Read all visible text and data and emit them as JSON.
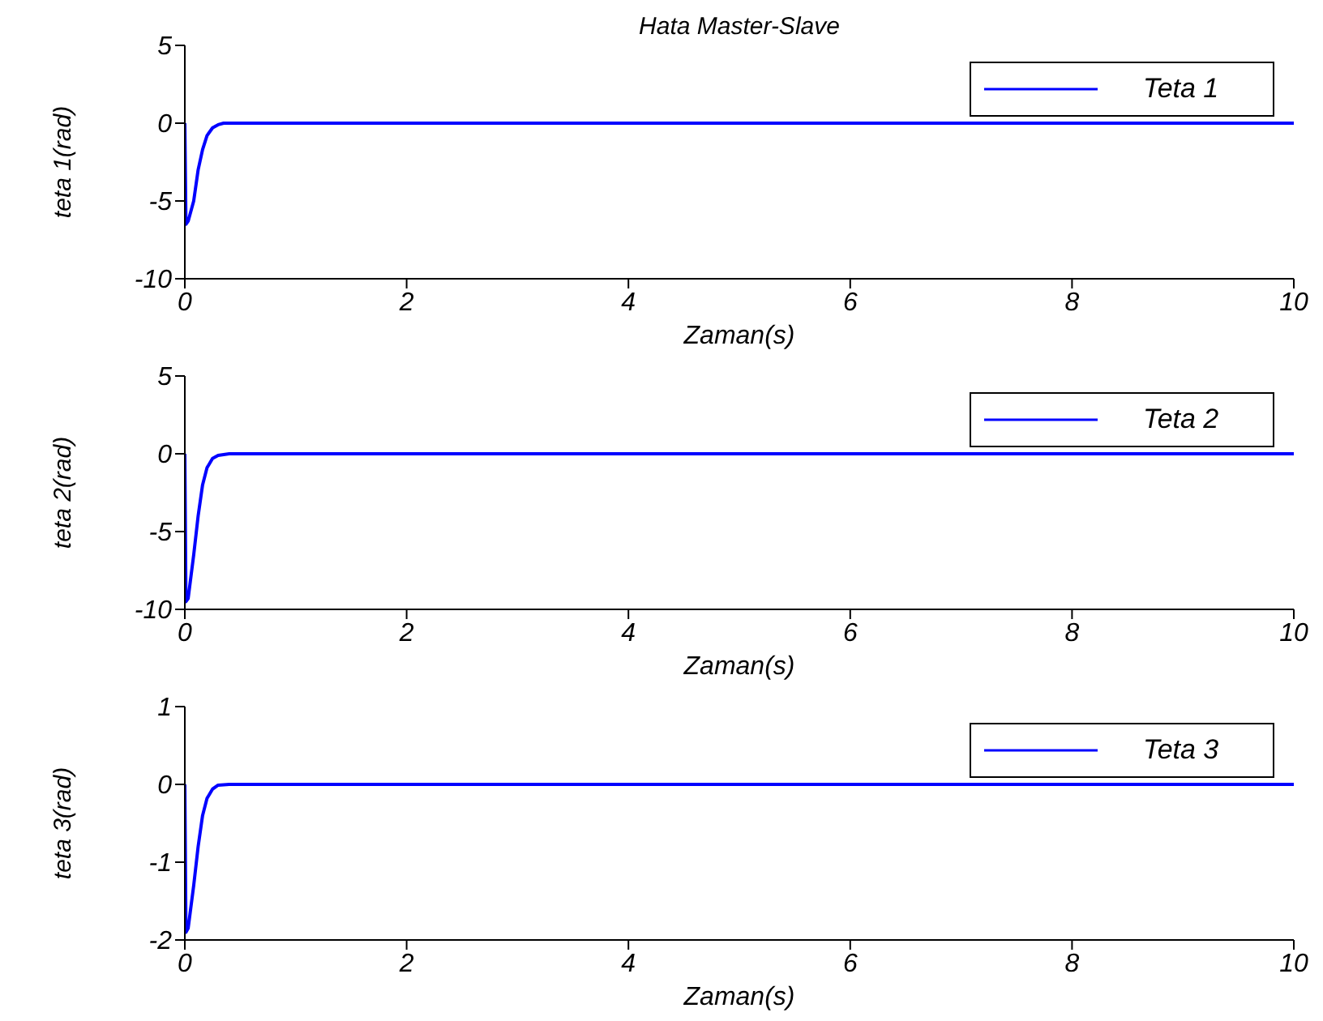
{
  "chart_data": [
    {
      "type": "line",
      "title": "Hata Master-Slave",
      "xlabel": "Zaman(s)",
      "ylabel": "teta 1(rad)",
      "xlim": [
        0,
        10
      ],
      "xticks": [
        0,
        2,
        4,
        6,
        8,
        10
      ],
      "ylim": [
        -10,
        5
      ],
      "yticks": [
        -10,
        -5,
        0,
        5
      ],
      "legend": "top right",
      "grid": false,
      "series": [
        {
          "name": "Teta 1",
          "color": "#0000ff",
          "x": [
            0,
            0.01,
            0.03,
            0.08,
            0.12,
            0.16,
            0.2,
            0.25,
            0.3,
            0.35,
            10
          ],
          "values": [
            0,
            -6.5,
            -6.3,
            -5,
            -3,
            -1.7,
            -0.8,
            -0.3,
            -0.1,
            0,
            0
          ]
        }
      ]
    },
    {
      "type": "line",
      "xlabel": "Zaman(s)",
      "ylabel": "teta 2(rad)",
      "xlim": [
        0,
        10
      ],
      "xticks": [
        0,
        2,
        4,
        6,
        8,
        10
      ],
      "ylim": [
        -10,
        5
      ],
      "yticks": [
        -10,
        -5,
        0,
        5
      ],
      "legend": "top right",
      "grid": false,
      "series": [
        {
          "name": "Teta 2",
          "color": "#0000ff",
          "x": [
            0,
            0.01,
            0.03,
            0.08,
            0.12,
            0.16,
            0.2,
            0.25,
            0.3,
            0.4,
            10
          ],
          "values": [
            0,
            -9.5,
            -9.3,
            -6.5,
            -4,
            -2,
            -0.9,
            -0.3,
            -0.1,
            0,
            0
          ]
        }
      ]
    },
    {
      "type": "line",
      "xlabel": "Zaman(s)",
      "ylabel": "teta 3(rad)",
      "xlim": [
        0,
        10
      ],
      "xticks": [
        0,
        2,
        4,
        6,
        8,
        10
      ],
      "ylim": [
        -2,
        1
      ],
      "yticks": [
        -2,
        -1,
        0,
        1
      ],
      "legend": "top right",
      "grid": false,
      "series": [
        {
          "name": "Teta 3",
          "color": "#0000ff",
          "x": [
            0,
            0.01,
            0.03,
            0.08,
            0.12,
            0.16,
            0.2,
            0.25,
            0.3,
            0.4,
            10
          ],
          "values": [
            0,
            -1.9,
            -1.85,
            -1.3,
            -0.8,
            -0.4,
            -0.18,
            -0.06,
            -0.01,
            0,
            0
          ]
        }
      ]
    }
  ]
}
